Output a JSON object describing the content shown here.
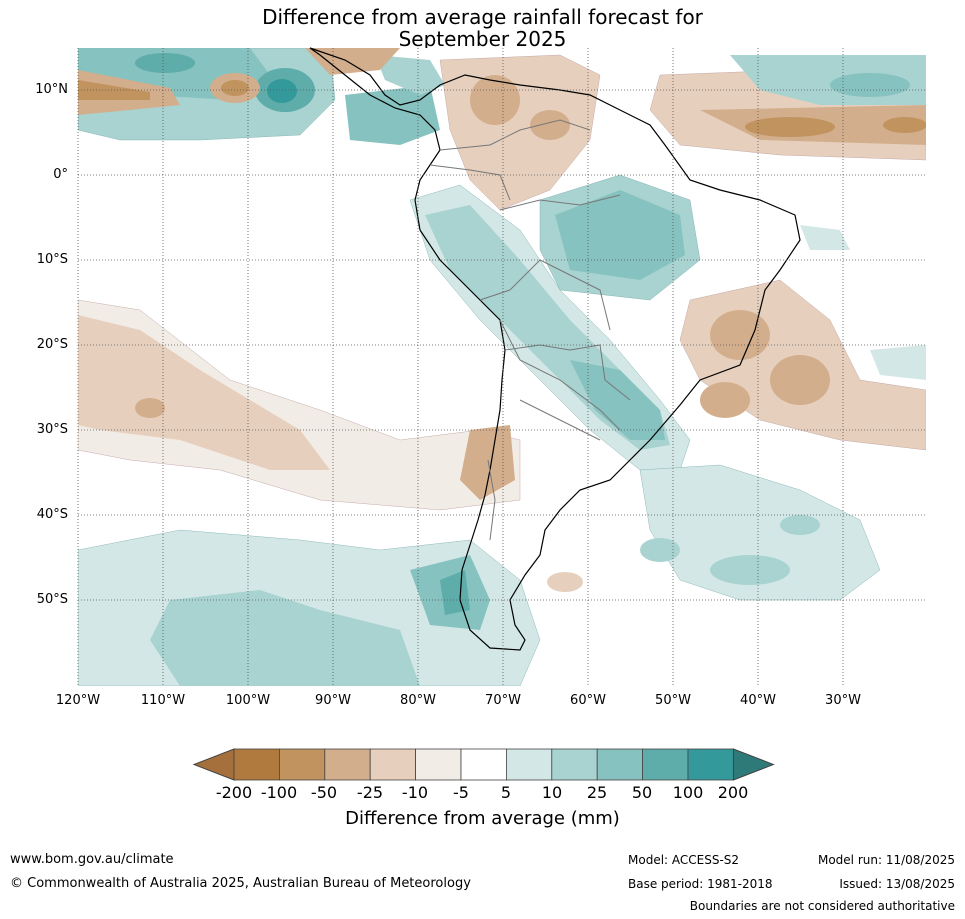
{
  "title": {
    "line1": "Difference from average rainfall forecast for",
    "line2": "September 2025"
  },
  "map": {
    "lat_labels": [
      "10°N",
      "0°",
      "10°S",
      "20°S",
      "30°S",
      "40°S",
      "50°S"
    ],
    "lon_labels": [
      "120°W",
      "110°W",
      "100°W",
      "90°W",
      "80°W",
      "70°W",
      "60°W",
      "50°W",
      "40°W",
      "30°W"
    ]
  },
  "colorbar": {
    "labels": [
      "-200",
      "-100",
      "-50",
      "-25",
      "-10",
      "-5",
      "5",
      "10",
      "25",
      "50",
      "100",
      "200"
    ],
    "colors": [
      "#a6703c",
      "#b07a3e",
      "#c0935f",
      "#d3ae8c",
      "#e6d0bd",
      "#f2ece6",
      "#ffffff",
      "#d3e8e6",
      "#a8d3d1",
      "#86c2bf",
      "#5eadaa",
      "#34999a",
      "#2d7a79"
    ],
    "title": "Difference from average (mm)"
  },
  "footer": {
    "site": "www.bom.gov.au/climate",
    "copyright": "© Commonwealth of Australia 2025, Australian Bureau of Meteorology",
    "model": "Model: ACCESS-S2",
    "base_period": "Base period: 1981-2018",
    "model_run": "Model run: 11/08/2025",
    "issued": "Issued: 13/08/2025",
    "disclaimer": "Boundaries are not considered authoritative"
  }
}
